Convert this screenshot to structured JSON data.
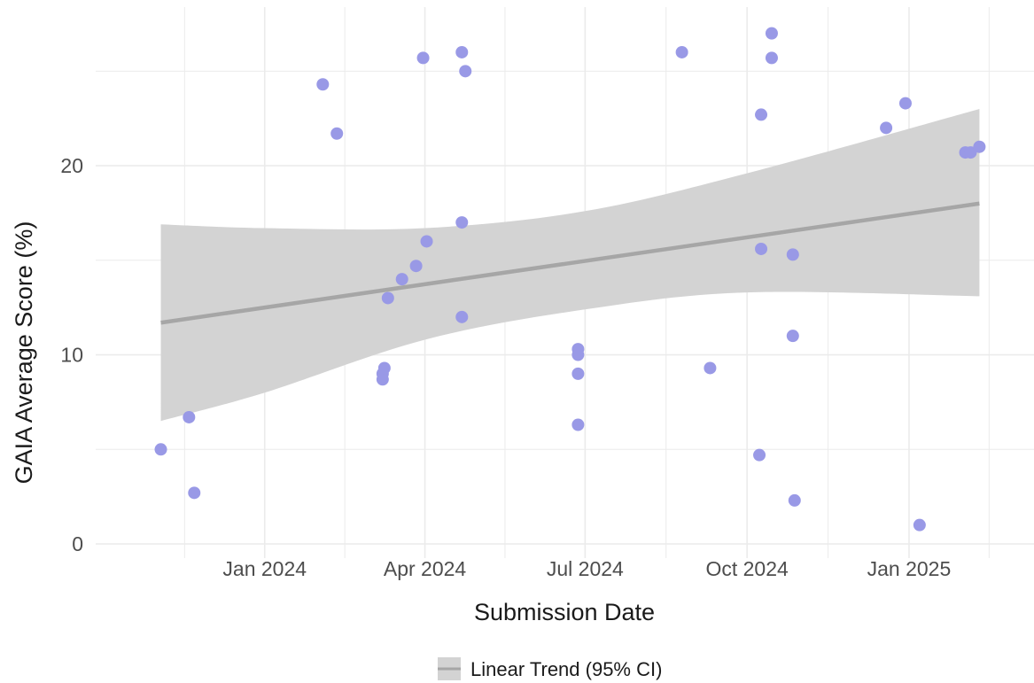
{
  "chart_data": {
    "type": "scatter",
    "title": "",
    "xlabel": "Submission Date",
    "ylabel": "GAIA Average Score (%)",
    "x_ticks": [
      "2024-01-01",
      "2024-04-01",
      "2024-07-01",
      "2024-10-01",
      "2025-01-01"
    ],
    "x_tick_labels": [
      "Jan 2024",
      "Apr 2024",
      "Jul 2024",
      "Oct 2024",
      "Jan 2025"
    ],
    "y_ticks": [
      0,
      10,
      20
    ],
    "y_tick_labels": [
      "0",
      "10",
      "20"
    ],
    "xlim": [
      "2023-09-27",
      "2025-03-13"
    ],
    "ylim": [
      0,
      28.5
    ],
    "grid": true,
    "colors": {
      "points": "#9999e6",
      "trend_line": "#a6a6a6",
      "ci_band": "#d3d3d3",
      "grid": "#ebebeb"
    },
    "points": [
      {
        "x": "2023-11-03",
        "y": 5.0
      },
      {
        "x": "2023-11-19",
        "y": 6.7
      },
      {
        "x": "2023-11-22",
        "y": 2.7
      },
      {
        "x": "2024-02-03",
        "y": 24.3
      },
      {
        "x": "2024-02-11",
        "y": 21.7
      },
      {
        "x": "2024-03-08",
        "y": 8.7
      },
      {
        "x": "2024-03-08",
        "y": 9.0
      },
      {
        "x": "2024-03-09",
        "y": 9.3
      },
      {
        "x": "2024-03-11",
        "y": 13.0
      },
      {
        "x": "2024-03-19",
        "y": 14.0
      },
      {
        "x": "2024-03-27",
        "y": 14.7
      },
      {
        "x": "2024-03-31",
        "y": 25.7
      },
      {
        "x": "2024-04-02",
        "y": 16.0
      },
      {
        "x": "2024-04-22",
        "y": 26.0
      },
      {
        "x": "2024-04-22",
        "y": 17.0
      },
      {
        "x": "2024-04-22",
        "y": 12.0
      },
      {
        "x": "2024-04-24",
        "y": 25.0
      },
      {
        "x": "2024-06-27",
        "y": 10.3
      },
      {
        "x": "2024-06-27",
        "y": 10.0
      },
      {
        "x": "2024-06-27",
        "y": 9.0
      },
      {
        "x": "2024-06-27",
        "y": 6.3
      },
      {
        "x": "2024-08-25",
        "y": 26.0
      },
      {
        "x": "2024-09-10",
        "y": 9.3
      },
      {
        "x": "2024-10-09",
        "y": 22.7
      },
      {
        "x": "2024-10-09",
        "y": 15.6
      },
      {
        "x": "2024-10-08",
        "y": 4.7
      },
      {
        "x": "2024-10-15",
        "y": 27.0
      },
      {
        "x": "2024-10-15",
        "y": 25.7
      },
      {
        "x": "2024-10-27",
        "y": 15.3
      },
      {
        "x": "2024-10-27",
        "y": 11.0
      },
      {
        "x": "2024-10-28",
        "y": 2.3
      },
      {
        "x": "2024-12-19",
        "y": 22.0
      },
      {
        "x": "2024-12-30",
        "y": 23.3
      },
      {
        "x": "2025-01-07",
        "y": 1.0
      },
      {
        "x": "2025-02-02",
        "y": 20.7
      },
      {
        "x": "2025-02-05",
        "y": 20.7
      },
      {
        "x": "2025-02-10",
        "y": 21.0
      }
    ],
    "trend": {
      "type": "linear",
      "x_start": "2023-11-03",
      "x_end": "2025-02-10",
      "y_start": 11.7,
      "y_end": 18.0,
      "ci": [
        {
          "x": "2023-11-03",
          "lower": 6.5,
          "upper": 16.9
        },
        {
          "x": "2024-01-01",
          "lower": 8.0,
          "upper": 16.7
        },
        {
          "x": "2024-04-01",
          "lower": 10.8,
          "upper": 16.7
        },
        {
          "x": "2024-07-01",
          "lower": 12.4,
          "upper": 17.6
        },
        {
          "x": "2024-10-01",
          "lower": 13.3,
          "upper": 19.6
        },
        {
          "x": "2025-02-10",
          "lower": 13.1,
          "upper": 23.0
        }
      ]
    },
    "legend": {
      "position": "bottom",
      "label": "Linear Trend (95% CI)"
    }
  }
}
